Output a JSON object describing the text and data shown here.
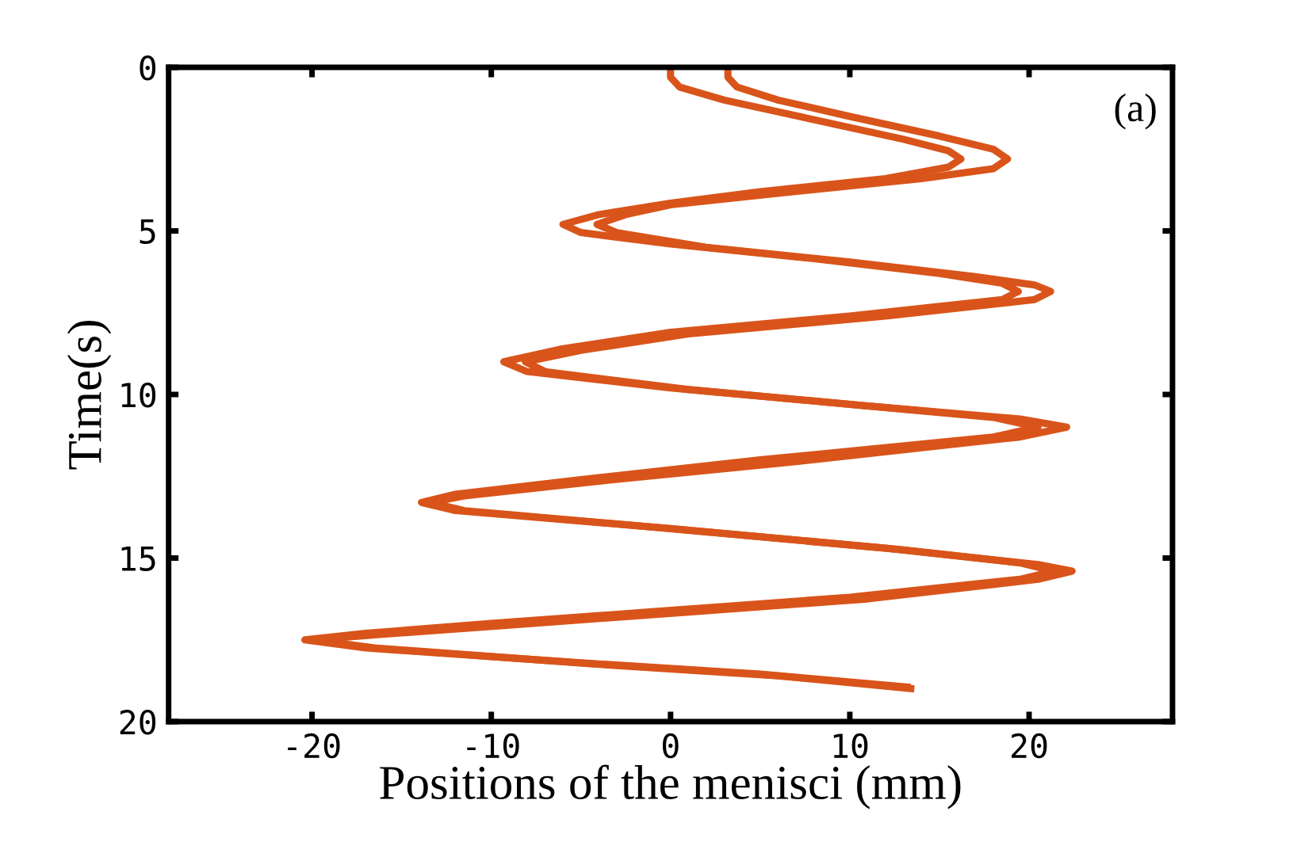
{
  "chart_data": {
    "type": "line",
    "xlabel": "Positions of the menisci (mm)",
    "ylabel": "Time(s)",
    "annotations": [
      "(a)"
    ],
    "xlim": [
      -28,
      28
    ],
    "xticks": [
      -20,
      -10,
      0,
      10,
      20
    ],
    "ylim": [
      20,
      0
    ],
    "yticks": [
      0,
      5,
      10,
      15,
      20
    ],
    "grid": false,
    "legend": false,
    "marker": "none",
    "line_style": "solid",
    "series": [
      {
        "color": "#d9541a",
        "x": [
          0,
          0,
          0.5,
          3,
          8,
          13,
          15.5,
          16.2,
          15.5,
          12,
          5,
          0,
          -4,
          -6,
          -5,
          0,
          8,
          15,
          18.5,
          19.4,
          18.5,
          10,
          0,
          -6,
          -9.3,
          -8,
          0,
          10,
          18,
          20.5,
          18,
          5,
          -5,
          -12,
          -13.9,
          -12,
          0,
          12,
          19.5,
          21.4,
          19.5,
          10,
          0,
          -10,
          -17,
          -20.4,
          -17,
          -5,
          5,
          13.4
        ],
        "values": [
          0,
          0.3,
          0.6,
          1.0,
          1.6,
          2.2,
          2.55,
          2.8,
          3.05,
          3.4,
          3.8,
          4.15,
          4.5,
          4.8,
          5.05,
          5.4,
          5.85,
          6.3,
          6.6,
          6.85,
          7.1,
          7.6,
          8.1,
          8.6,
          9.0,
          9.3,
          9.8,
          10.3,
          10.7,
          11.0,
          11.3,
          12.0,
          12.6,
          13.05,
          13.3,
          13.55,
          14.1,
          14.7,
          15.15,
          15.4,
          15.65,
          16.2,
          16.6,
          17.0,
          17.3,
          17.5,
          17.75,
          18.2,
          18.55,
          18.95
        ]
      },
      {
        "color": "#d9541a",
        "x": [
          3.2,
          3.2,
          3.7,
          6,
          10,
          15,
          18,
          18.8,
          18,
          14,
          6,
          0,
          -2.5,
          -4.1,
          -3,
          2,
          10,
          17,
          20.3,
          21.2,
          20.3,
          12,
          1,
          -5,
          -8.1,
          -7,
          1,
          11,
          19.5,
          22.1,
          19.5,
          7,
          -4,
          -11.5,
          -13.4,
          -11.5,
          1,
          13,
          20.5,
          22.4,
          20.5,
          11,
          1,
          -9,
          -16.5,
          -20.0,
          -16.5,
          -4,
          6,
          13.6
        ],
        "values": [
          0,
          0.3,
          0.6,
          1.0,
          1.5,
          2.1,
          2.5,
          2.8,
          3.1,
          3.4,
          3.85,
          4.2,
          4.5,
          4.8,
          5.05,
          5.5,
          5.95,
          6.4,
          6.65,
          6.85,
          7.1,
          7.6,
          8.15,
          8.65,
          9.0,
          9.3,
          9.85,
          10.35,
          10.75,
          11.0,
          11.3,
          12.05,
          12.65,
          13.1,
          13.3,
          13.55,
          14.15,
          14.75,
          15.2,
          15.4,
          15.65,
          16.25,
          16.65,
          17.05,
          17.35,
          17.5,
          17.75,
          18.25,
          18.6,
          19.0
        ]
      }
    ]
  }
}
